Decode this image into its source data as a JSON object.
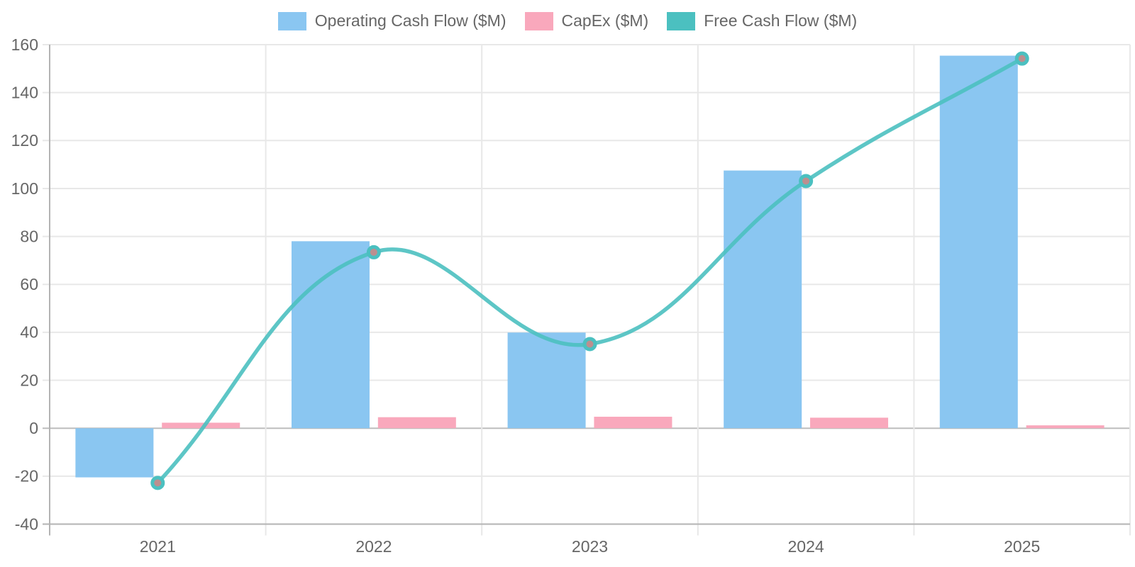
{
  "chart_data": {
    "type": "combo-bar-line",
    "title": "",
    "xlabel": "",
    "ylabel": "",
    "categories": [
      "2021",
      "2022",
      "2023",
      "2024",
      "2025"
    ],
    "series": [
      {
        "name": "Operating Cash Flow ($M)",
        "type": "bar",
        "color": "#8AC6F1",
        "values": [
          -20.5,
          78.0,
          39.9,
          107.5,
          155.4
        ]
      },
      {
        "name": "CapEx ($M)",
        "type": "bar",
        "color": "#F9A8BC",
        "values": [
          2.3,
          4.6,
          4.8,
          4.4,
          1.2
        ]
      },
      {
        "name": "Free Cash Flow ($M)",
        "type": "line",
        "color": "#4BC0C0",
        "point_color": "#BC8F8F",
        "values": [
          -22.8,
          73.4,
          35.1,
          103.1,
          154.2
        ]
      }
    ],
    "ylim": [
      -40,
      160
    ],
    "ytick_step": 20,
    "ytick_labels": [
      "-40",
      "-20",
      "0",
      "20",
      "40",
      "60",
      "80",
      "100",
      "120",
      "140",
      "160"
    ],
    "grid": true,
    "legend_position": "top",
    "line_tension": 0.4,
    "colors": {
      "grid_line": "#E8E8E8",
      "zero_line": "#BDBDBD",
      "axis_border": "#B3B3B3",
      "tick_label": "#666666",
      "background": "#FFFFFF"
    }
  }
}
